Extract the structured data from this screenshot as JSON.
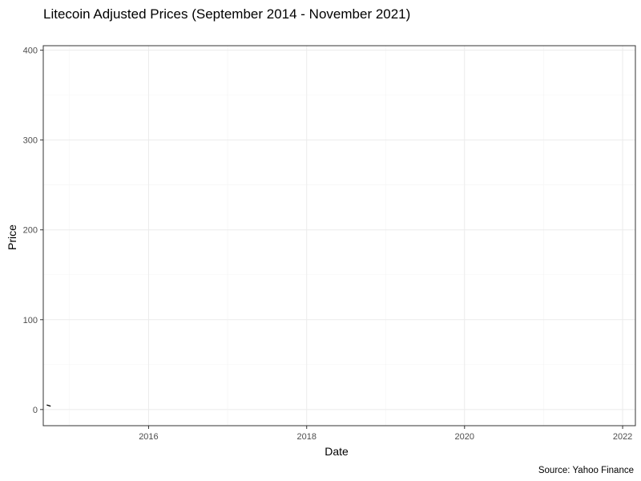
{
  "chart_data": {
    "type": "line",
    "title": "Litecoin Adjusted Prices (September 2014 - November 2021)",
    "xlabel": "Date",
    "ylabel": "Price",
    "caption": "Source: Yahoo Finance",
    "xlim": [
      "2014-09-01",
      "2022-03-01"
    ],
    "ylim": [
      -18,
      405
    ],
    "x_ticks": [
      "2016-01-01",
      "2018-01-01",
      "2020-01-01",
      "2022-01-01"
    ],
    "x_tick_labels": [
      "2016",
      "2018",
      "2020",
      "2022"
    ],
    "y_ticks": [
      0,
      100,
      200,
      300,
      400
    ],
    "y_tick_labels": [
      "0",
      "100",
      "200",
      "300",
      "400"
    ],
    "grid": true,
    "legend": "none",
    "series": [
      {
        "x": [
          "2014-09-17",
          "2014-09-20",
          "2014-09-23",
          "2014-09-26",
          "2014-09-29",
          "2014-10-02",
          "2014-10-05"
        ],
        "values": [
          5.1,
          4.9,
          4.6,
          4.4,
          4.2,
          4.0,
          3.6
        ]
      }
    ]
  }
}
